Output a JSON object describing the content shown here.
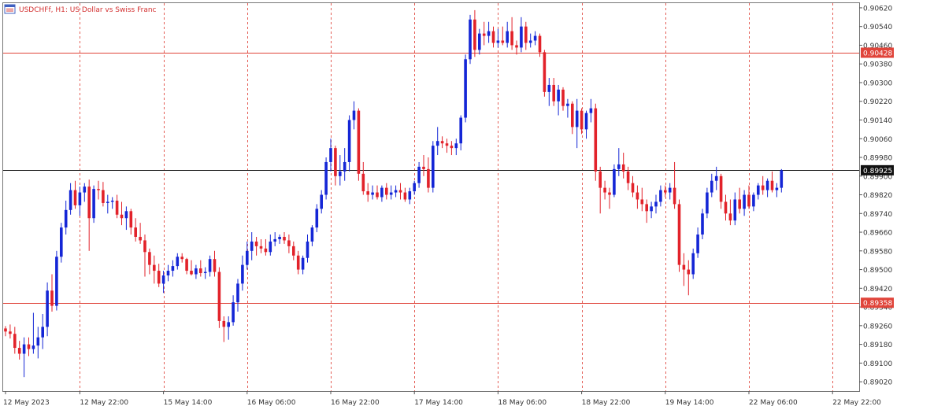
{
  "header": {
    "symbol": "USDCHFf",
    "timeframe": "H1",
    "description": "US Dollar vs Swiss Franc",
    "title_text": "USDCHFf, H1:  US Dollar vs Swiss Franc",
    "icon": "chart-window-icon"
  },
  "colors": {
    "bull": "#1426d6",
    "bear": "#e2222a",
    "neutral": "#2e8b2e",
    "grid": "#e0443a",
    "level_line": "#e0443a",
    "bid_line": "#111111",
    "border": "#666666"
  },
  "chart_data": {
    "type": "candlestick",
    "symbol": "USDCHFf",
    "timeframe": "H1",
    "y_axis_ticks": [
      "0.90620",
      "0.90540",
      "0.90460",
      "0.90380",
      "0.90300",
      "0.90220",
      "0.90140",
      "0.90060",
      "0.89980",
      "0.89900",
      "0.89820",
      "0.89740",
      "0.89660",
      "0.89580",
      "0.89500",
      "0.89420",
      "0.89340",
      "0.89260",
      "0.89180",
      "0.89100",
      "0.89020"
    ],
    "ylim": [
      0.8898,
      0.9064
    ],
    "x_axis_labels": [
      "12 May 2023",
      "12 May 22:00",
      "15 May 14:00",
      "16 May 06:00",
      "16 May 22:00",
      "17 May 14:00",
      "18 May 06:00",
      "18 May 22:00",
      "19 May 14:00",
      "22 May 06:00",
      "22 May 22:00"
    ],
    "x_label_bar_index": [
      0,
      16,
      34,
      52,
      70,
      88,
      106,
      124,
      142,
      160,
      178
    ],
    "levels": [
      {
        "name": "resistance",
        "price": 0.90428,
        "label": "0.90428"
      },
      {
        "name": "support",
        "price": 0.89358,
        "label": "0.89358"
      }
    ],
    "current_price": {
      "price": 0.89925,
      "label": "0.89925"
    },
    "grid": "vertical-dashed",
    "candles": [
      [
        0.89248,
        0.89258,
        0.89215,
        0.89235
      ],
      [
        0.89235,
        0.89265,
        0.89205,
        0.89225
      ],
      [
        0.89225,
        0.89255,
        0.8914,
        0.89165
      ],
      [
        0.89165,
        0.89195,
        0.89115,
        0.8914
      ],
      [
        0.8914,
        0.8921,
        0.8904,
        0.8918
      ],
      [
        0.8918,
        0.8921,
        0.8913,
        0.8916
      ],
      [
        0.8916,
        0.89315,
        0.8914,
        0.89175
      ],
      [
        0.89175,
        0.89255,
        0.8912,
        0.8921
      ],
      [
        0.8921,
        0.8931,
        0.8916,
        0.89255
      ],
      [
        0.89255,
        0.89445,
        0.89215,
        0.8941
      ],
      [
        0.8941,
        0.8948,
        0.8932,
        0.89345
      ],
      [
        0.89345,
        0.8958,
        0.89325,
        0.89555
      ],
      [
        0.89555,
        0.897,
        0.8953,
        0.8968
      ],
      [
        0.8968,
        0.89795,
        0.8965,
        0.89755
      ],
      [
        0.89755,
        0.8987,
        0.89735,
        0.8984
      ],
      [
        0.8984,
        0.8988,
        0.8976,
        0.89775
      ],
      [
        0.89775,
        0.89855,
        0.8973,
        0.8983
      ],
      [
        0.8983,
        0.8987,
        0.8979,
        0.89855
      ],
      [
        0.89855,
        0.89885,
        0.8958,
        0.8972
      ],
      [
        0.8972,
        0.8986,
        0.897,
        0.89845
      ],
      [
        0.89845,
        0.8988,
        0.898,
        0.8984
      ],
      [
        0.8984,
        0.89875,
        0.8977,
        0.89785
      ],
      [
        0.89785,
        0.8982,
        0.8974,
        0.8979
      ],
      [
        0.8979,
        0.8981,
        0.8976,
        0.89795
      ],
      [
        0.89795,
        0.8982,
        0.8972,
        0.89735
      ],
      [
        0.89735,
        0.8979,
        0.8969,
        0.8972
      ],
      [
        0.8972,
        0.8977,
        0.8967,
        0.8975
      ],
      [
        0.8975,
        0.8976,
        0.8965,
        0.8968
      ],
      [
        0.8968,
        0.8972,
        0.8962,
        0.8964
      ],
      [
        0.8964,
        0.897,
        0.8961,
        0.89625
      ],
      [
        0.89625,
        0.8965,
        0.8947,
        0.89575
      ],
      [
        0.89575,
        0.8959,
        0.8948,
        0.8952
      ],
      [
        0.8952,
        0.8956,
        0.8944,
        0.89495
      ],
      [
        0.89495,
        0.89525,
        0.89425,
        0.8944
      ],
      [
        0.8944,
        0.89495,
        0.894,
        0.89475
      ],
      [
        0.89475,
        0.8952,
        0.8945,
        0.89495
      ],
      [
        0.89495,
        0.8954,
        0.8947,
        0.89515
      ],
      [
        0.89515,
        0.8957,
        0.895,
        0.89555
      ],
      [
        0.89555,
        0.8957,
        0.8953,
        0.89545
      ],
      [
        0.89545,
        0.8955,
        0.8948,
        0.89495
      ],
      [
        0.89495,
        0.8954,
        0.89475,
        0.8948
      ],
      [
        0.8948,
        0.8952,
        0.8946,
        0.89505
      ],
      [
        0.89505,
        0.8954,
        0.8947,
        0.89485
      ],
      [
        0.89485,
        0.8951,
        0.8946,
        0.8949
      ],
      [
        0.8949,
        0.8956,
        0.8947,
        0.89545
      ],
      [
        0.89545,
        0.8958,
        0.8947,
        0.8949
      ],
      [
        0.8949,
        0.8951,
        0.8925,
        0.8928
      ],
      [
        0.8928,
        0.893,
        0.8919,
        0.89255
      ],
      [
        0.89255,
        0.893,
        0.892,
        0.89275
      ],
      [
        0.89275,
        0.8939,
        0.8926,
        0.8936
      ],
      [
        0.8936,
        0.8946,
        0.8932,
        0.8944
      ],
      [
        0.8944,
        0.8956,
        0.8941,
        0.8952
      ],
      [
        0.8952,
        0.8962,
        0.895,
        0.8958
      ],
      [
        0.8958,
        0.8966,
        0.8954,
        0.8962
      ],
      [
        0.8962,
        0.8964,
        0.8956,
        0.896
      ],
      [
        0.896,
        0.8963,
        0.8957,
        0.8959
      ],
      [
        0.8959,
        0.8963,
        0.8956,
        0.89575
      ],
      [
        0.89575,
        0.8965,
        0.8956,
        0.8962
      ],
      [
        0.8962,
        0.8966,
        0.896,
        0.8963
      ],
      [
        0.8963,
        0.8965,
        0.8961,
        0.8964
      ],
      [
        0.8964,
        0.8966,
        0.8961,
        0.89625
      ],
      [
        0.89625,
        0.8965,
        0.8957,
        0.896
      ],
      [
        0.896,
        0.8962,
        0.8954,
        0.8956
      ],
      [
        0.8956,
        0.8958,
        0.8948,
        0.895
      ],
      [
        0.895,
        0.8956,
        0.8948,
        0.8955
      ],
      [
        0.8955,
        0.8965,
        0.8953,
        0.8962
      ],
      [
        0.8962,
        0.8969,
        0.896,
        0.8968
      ],
      [
        0.8968,
        0.8978,
        0.8966,
        0.8976
      ],
      [
        0.8976,
        0.8984,
        0.8974,
        0.8982
      ],
      [
        0.8982,
        0.8998,
        0.898,
        0.8996
      ],
      [
        0.8996,
        0.9006,
        0.8992,
        0.9002
      ],
      [
        0.9002,
        0.9003,
        0.8986,
        0.899
      ],
      [
        0.899,
        0.8999,
        0.8986,
        0.8992
      ],
      [
        0.8992,
        0.9002,
        0.8988,
        0.8996
      ],
      [
        0.8996,
        0.9016,
        0.8992,
        0.9014
      ],
      [
        0.9014,
        0.9022,
        0.901,
        0.9018
      ],
      [
        0.9018,
        0.9019,
        0.8988,
        0.8991
      ],
      [
        0.8991,
        0.8996,
        0.8982,
        0.89835
      ],
      [
        0.89835,
        0.8987,
        0.8979,
        0.8982
      ],
      [
        0.8982,
        0.8986,
        0.898,
        0.8983
      ],
      [
        0.8983,
        0.8986,
        0.898,
        0.8981
      ],
      [
        0.8981,
        0.8986,
        0.8979,
        0.8985
      ],
      [
        0.8985,
        0.8987,
        0.898,
        0.8982
      ],
      [
        0.8982,
        0.8986,
        0.898,
        0.8983
      ],
      [
        0.8983,
        0.8986,
        0.8981,
        0.8984
      ],
      [
        0.8984,
        0.8987,
        0.898,
        0.8983
      ],
      [
        0.8983,
        0.8985,
        0.8979,
        0.898
      ],
      [
        0.898,
        0.8985,
        0.8978,
        0.89835
      ],
      [
        0.89835,
        0.8988,
        0.8982,
        0.8987
      ],
      [
        0.8987,
        0.8996,
        0.8985,
        0.8994
      ],
      [
        0.8994,
        0.8999,
        0.899,
        0.8993
      ],
      [
        0.8993,
        0.8998,
        0.8983,
        0.8985
      ],
      [
        0.8985,
        0.9005,
        0.8983,
        0.9003
      ],
      [
        0.9003,
        0.9011,
        0.8999,
        0.9005
      ],
      [
        0.9005,
        0.9007,
        0.9002,
        0.9004
      ],
      [
        0.9004,
        0.9006,
        0.9,
        0.9003
      ],
      [
        0.9003,
        0.9005,
        0.8999,
        0.9002
      ],
      [
        0.9002,
        0.9006,
        0.8999,
        0.9004
      ],
      [
        0.9004,
        0.9016,
        0.9001,
        0.9015
      ],
      [
        0.9015,
        0.9042,
        0.9013,
        0.904
      ],
      [
        0.904,
        0.9059,
        0.9038,
        0.9057
      ],
      [
        0.9057,
        0.9061,
        0.9041,
        0.9044
      ],
      [
        0.9044,
        0.9053,
        0.9042,
        0.9051
      ],
      [
        0.9051,
        0.9056,
        0.9046,
        0.905
      ],
      [
        0.905,
        0.9056,
        0.9047,
        0.9052
      ],
      [
        0.9052,
        0.9054,
        0.9045,
        0.9047
      ],
      [
        0.9047,
        0.9053,
        0.9045,
        0.9048
      ],
      [
        0.9048,
        0.9054,
        0.9046,
        0.9047
      ],
      [
        0.9047,
        0.9056,
        0.9045,
        0.9052
      ],
      [
        0.9052,
        0.9058,
        0.9044,
        0.9046
      ],
      [
        0.9046,
        0.9048,
        0.9042,
        0.9045
      ],
      [
        0.9045,
        0.9058,
        0.9043,
        0.9054
      ],
      [
        0.9054,
        0.9056,
        0.9044,
        0.9047
      ],
      [
        0.9047,
        0.9051,
        0.9045,
        0.9048
      ],
      [
        0.9048,
        0.9052,
        0.9046,
        0.905
      ],
      [
        0.905,
        0.9051,
        0.9041,
        0.9043
      ],
      [
        0.9043,
        0.9044,
        0.9024,
        0.9026
      ],
      [
        0.9026,
        0.9032,
        0.902,
        0.9029
      ],
      [
        0.9029,
        0.9032,
        0.902,
        0.9022
      ],
      [
        0.9022,
        0.9029,
        0.9016,
        0.9027
      ],
      [
        0.9027,
        0.9028,
        0.9018,
        0.902
      ],
      [
        0.902,
        0.9023,
        0.9015,
        0.9021
      ],
      [
        0.9021,
        0.9022,
        0.9008,
        0.9011
      ],
      [
        0.9011,
        0.9023,
        0.9002,
        0.9018
      ],
      [
        0.9018,
        0.9019,
        0.9008,
        0.901
      ],
      [
        0.901,
        0.9018,
        0.9006,
        0.9017
      ],
      [
        0.9017,
        0.9023,
        0.9013,
        0.9019
      ],
      [
        0.9019,
        0.9021,
        0.8988,
        0.8992
      ],
      [
        0.8992,
        0.8994,
        0.8974,
        0.8985
      ],
      [
        0.8985,
        0.8988,
        0.898,
        0.8983
      ],
      [
        0.8983,
        0.8985,
        0.8976,
        0.8982
      ],
      [
        0.8982,
        0.8995,
        0.8981,
        0.8993
      ],
      [
        0.8993,
        0.9002,
        0.899,
        0.8995
      ],
      [
        0.8995,
        0.9,
        0.8989,
        0.8992
      ],
      [
        0.8992,
        0.8994,
        0.8984,
        0.8987
      ],
      [
        0.8987,
        0.899,
        0.8981,
        0.8983
      ],
      [
        0.8983,
        0.8986,
        0.8976,
        0.898
      ],
      [
        0.898,
        0.8985,
        0.8975,
        0.8978
      ],
      [
        0.8978,
        0.898,
        0.897,
        0.8975
      ],
      [
        0.8975,
        0.8979,
        0.8972,
        0.8977
      ],
      [
        0.8977,
        0.8982,
        0.8974,
        0.8979
      ],
      [
        0.8979,
        0.8986,
        0.8977,
        0.8984
      ],
      [
        0.8984,
        0.8986,
        0.8981,
        0.8983
      ],
      [
        0.8983,
        0.8987,
        0.898,
        0.8985
      ],
      [
        0.8985,
        0.8996,
        0.8976,
        0.8978
      ],
      [
        0.8978,
        0.898,
        0.8949,
        0.8952
      ],
      [
        0.8952,
        0.8957,
        0.8943,
        0.895
      ],
      [
        0.895,
        0.8954,
        0.8939,
        0.8948
      ],
      [
        0.8948,
        0.8959,
        0.8946,
        0.8957
      ],
      [
        0.8957,
        0.8968,
        0.8955,
        0.8965
      ],
      [
        0.8965,
        0.8976,
        0.8963,
        0.8974
      ],
      [
        0.8974,
        0.8985,
        0.8972,
        0.8983
      ],
      [
        0.8983,
        0.8991,
        0.8981,
        0.8988
      ],
      [
        0.8988,
        0.8994,
        0.8984,
        0.899
      ],
      [
        0.899,
        0.8991,
        0.8976,
        0.8979
      ],
      [
        0.8979,
        0.8982,
        0.8971,
        0.8974
      ],
      [
        0.8974,
        0.898,
        0.8969,
        0.8971
      ],
      [
        0.8971,
        0.8983,
        0.8969,
        0.898
      ],
      [
        0.898,
        0.8985,
        0.8974,
        0.8976
      ],
      [
        0.8976,
        0.8984,
        0.8973,
        0.8982
      ],
      [
        0.8982,
        0.8986,
        0.8976,
        0.8977
      ],
      [
        0.8977,
        0.8983,
        0.8975,
        0.8982
      ],
      [
        0.8982,
        0.8987,
        0.898,
        0.8986
      ],
      [
        0.8986,
        0.899,
        0.8982,
        0.8984
      ],
      [
        0.8984,
        0.8989,
        0.8981,
        0.8988
      ],
      [
        0.8988,
        0.8992,
        0.8983,
        0.8984
      ],
      [
        0.8984,
        0.8987,
        0.8981,
        0.8985
      ],
      [
        0.8985,
        0.8993,
        0.8983,
        0.89925
      ]
    ]
  }
}
